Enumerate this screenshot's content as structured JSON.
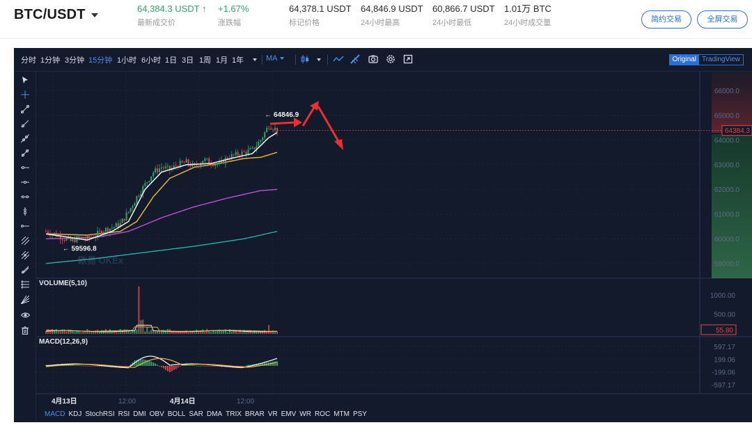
{
  "header": {
    "pair": "BTC/USDT",
    "last_price": "64,384.3 USDT",
    "last_arrow": "↑",
    "last_price_label": "最新成交价",
    "change": "+1.67%",
    "change_label": "涨跌幅",
    "mark_price": "64,378.1 USDT",
    "mark_price_label": "标记价格",
    "high_24h": "64,846.9 USDT",
    "high_24h_label": "24小时最高",
    "low_24h": "60,866.7 USDT",
    "low_24h_label": "24小时最低",
    "volume_24h": "1.01万 BTC",
    "volume_24h_label": "24小时成交量",
    "simple_button": "简约交易",
    "fullscreen_button": "全屏交易"
  },
  "toolbar": {
    "intervals": [
      "分时",
      "1分钟",
      "3分钟",
      "15分钟",
      "1小时",
      "6小时",
      "1日",
      "3日",
      "1周",
      "1月",
      "1年"
    ],
    "active_interval": "15分钟",
    "ma_label": "MA",
    "mode_original": "Original",
    "mode_tradingview": "TradingView",
    "icons": [
      "chevron-down",
      "candle-type",
      "line-tool",
      "pen-tool",
      "camera",
      "settings",
      "fullscreen"
    ]
  },
  "left_tools": [
    "cursor",
    "crosshair",
    "trend-line",
    "ray",
    "extended-line",
    "parallel-channel",
    "horizontal-line",
    "horizontal-ray",
    "price-range",
    "vertical-line",
    "arrow-line",
    "fib-retracement",
    "fib-fan",
    "gann-fan",
    "pitchfork",
    "eye",
    "trash"
  ],
  "chart": {
    "watermark": "欧易 OKEx",
    "high_marker": "← 64846.9",
    "low_marker": "← 59596.8",
    "current_price_tag": "64384.3",
    "volume_label": "VOLUME(5,10)",
    "volume_tag": "55.80",
    "macd_label": "MACD(12,26,9)",
    "x_ticks": [
      "4月13日",
      "12:00",
      "4月14日",
      "12:00"
    ],
    "price_ticks": [
      "66000.0",
      "65000.0",
      "64000.0",
      "63000.0",
      "62000.0",
      "61000.0",
      "60000.0",
      "59000.0"
    ],
    "volume_ticks": [
      "1000.00",
      "500.00"
    ],
    "macd_ticks": [
      "597.17",
      "199.06",
      "-199.06",
      "-597.17"
    ],
    "colors": {
      "background": "#121a2b",
      "up": "#30a36d",
      "down": "#e04848",
      "ma_white": "#f2f2f2",
      "ma_yellow": "#e7b13a",
      "ma_magenta": "#c050d8",
      "ma_teal": "#2ab0a8",
      "annotation_red": "#e83030"
    }
  },
  "chart_data": {
    "type": "candlestick",
    "title": "",
    "ylim": [
      58600,
      66600
    ],
    "price_ticks": [
      66000,
      65000,
      64000,
      63000,
      62000,
      61000,
      60000,
      59000
    ],
    "high": 64846.9,
    "low": 59596.8,
    "last": 64384.3,
    "close_path": [
      [
        0,
        60300
      ],
      [
        4,
        60200
      ],
      [
        8,
        60050
      ],
      [
        12,
        59900
      ],
      [
        16,
        60050
      ],
      [
        20,
        60000
      ],
      [
        24,
        60150
      ],
      [
        28,
        60350
      ],
      [
        32,
        60450
      ],
      [
        36,
        60600
      ],
      [
        40,
        61100
      ],
      [
        44,
        61700
      ],
      [
        48,
        62200
      ],
      [
        52,
        62700
      ],
      [
        56,
        62900
      ],
      [
        60,
        62800
      ],
      [
        64,
        63000
      ],
      [
        68,
        63100
      ],
      [
        72,
        62900
      ],
      [
        76,
        63200
      ],
      [
        80,
        63100
      ],
      [
        84,
        63000
      ],
      [
        88,
        63300
      ],
      [
        92,
        63400
      ],
      [
        96,
        63500
      ],
      [
        100,
        63600
      ],
      [
        104,
        64000
      ],
      [
        108,
        64600
      ],
      [
        112,
        64400
      ]
    ],
    "ma_white": [
      [
        0,
        60200
      ],
      [
        20,
        59950
      ],
      [
        32,
        60300
      ],
      [
        40,
        60700
      ],
      [
        48,
        62000
      ],
      [
        56,
        62700
      ],
      [
        68,
        63000
      ],
      [
        80,
        63050
      ],
      [
        92,
        63300
      ],
      [
        100,
        63450
      ],
      [
        108,
        64100
      ],
      [
        112,
        64300
      ]
    ],
    "ma_yellow": [
      [
        0,
        60200
      ],
      [
        20,
        60150
      ],
      [
        36,
        60300
      ],
      [
        44,
        60700
      ],
      [
        52,
        61700
      ],
      [
        60,
        62450
      ],
      [
        72,
        62900
      ],
      [
        84,
        63050
      ],
      [
        96,
        63250
      ],
      [
        104,
        63300
      ],
      [
        112,
        63500
      ]
    ],
    "ma_magenta": [
      [
        0,
        60000
      ],
      [
        24,
        60050
      ],
      [
        40,
        60300
      ],
      [
        56,
        60850
      ],
      [
        72,
        61300
      ],
      [
        88,
        61650
      ],
      [
        104,
        61950
      ],
      [
        112,
        62000
      ]
    ],
    "ma_teal": [
      [
        0,
        59000
      ],
      [
        24,
        59200
      ],
      [
        48,
        59450
      ],
      [
        72,
        59700
      ],
      [
        96,
        60000
      ],
      [
        112,
        60300
      ]
    ],
    "volume_ylim": [
      0,
      1350
    ],
    "volume_ticks": [
      1000,
      500
    ],
    "volume_last": 55.8,
    "macd_ticks": [
      597.17,
      199.06,
      -199.06,
      -597.17
    ],
    "macd_ylim": [
      -800,
      800
    ],
    "x_ticks": [
      "4月13日",
      "12:00",
      "4月14日",
      "12:00"
    ]
  },
  "bottom_tabs": [
    "MACD",
    "KDJ",
    "StochRSI",
    "RSI",
    "DMI",
    "OBV",
    "BOLL",
    "SAR",
    "DMA",
    "TRIX",
    "BRAR",
    "VR",
    "EMV",
    "WR",
    "ROC",
    "MTM",
    "PSY"
  ],
  "bottom_active": "MACD"
}
